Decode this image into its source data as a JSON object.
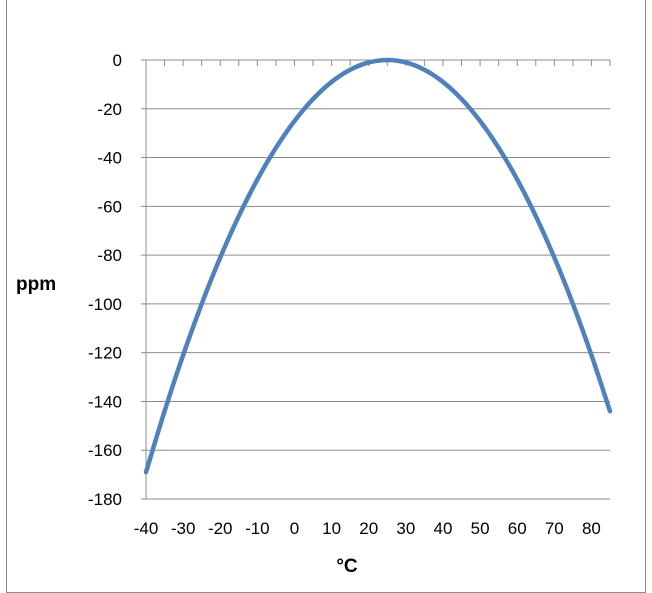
{
  "chart_data": {
    "type": "line",
    "title": "",
    "xlabel": "°C",
    "ylabel": "ppm",
    "xlim": [
      -40,
      85
    ],
    "ylim": [
      -180,
      0
    ],
    "x_ticks": [
      "-40",
      "-30",
      "-20",
      "-10",
      "0",
      "10",
      "20",
      "30",
      "40",
      "50",
      "60",
      "70",
      "80"
    ],
    "y_ticks": [
      "0",
      "-20",
      "-40",
      "-60",
      "-80",
      "-100",
      "-120",
      "-140",
      "-160",
      "-180"
    ],
    "grid": true,
    "legend": "none",
    "series": [
      {
        "color": "#4f81bd",
        "x": [
          -40,
          -35,
          -30,
          -25,
          -20,
          -15,
          -10,
          -5,
          0,
          5,
          10,
          15,
          20,
          25,
          30,
          35,
          40,
          45,
          50,
          55,
          60,
          65,
          70,
          75,
          80,
          85
        ],
        "y": [
          -169,
          -144,
          -121,
          -100,
          -81,
          -64,
          -49,
          -36,
          -25,
          -16,
          -9,
          -4,
          -1,
          0,
          -1,
          -4,
          -9,
          -16,
          -25,
          -36,
          -49,
          -64,
          -81,
          -100,
          -121,
          -144
        ]
      }
    ]
  }
}
